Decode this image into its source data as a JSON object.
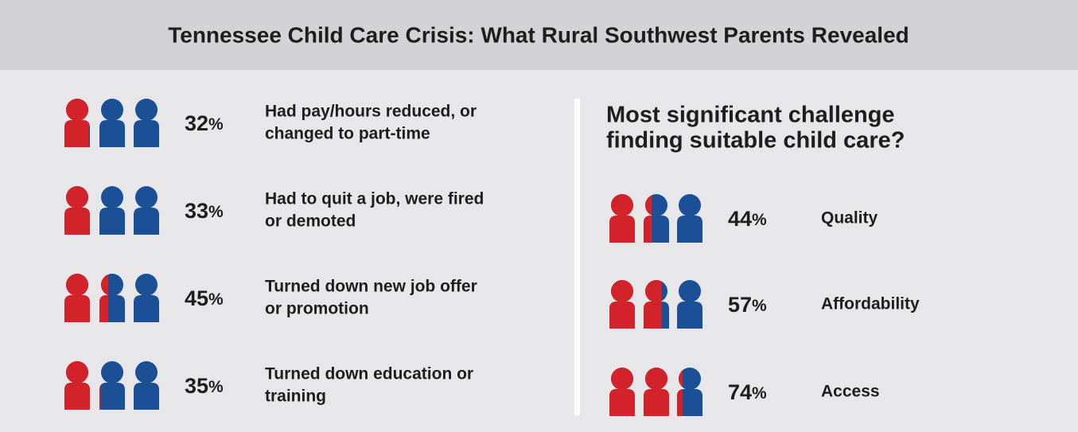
{
  "header": {
    "title": "Tennessee Child Care Crisis: What Rural Southwest Parents Revealed"
  },
  "unit": "%",
  "left": {
    "items": [
      {
        "value": 32,
        "label": [
          "Had pay/hours reduced, or",
          "changed to part-time"
        ]
      },
      {
        "value": 33,
        "label": [
          "Had to quit a job, were fired",
          "or demoted"
        ]
      },
      {
        "value": 45,
        "label": [
          "Turned down new job offer",
          "or promotion"
        ]
      },
      {
        "value": 35,
        "label": [
          "Turned down education or",
          "training"
        ]
      }
    ]
  },
  "right": {
    "heading": [
      "Most significant challenge",
      "finding suitable child care?"
    ],
    "items": [
      {
        "value": 44,
        "label": [
          "Quality"
        ]
      },
      {
        "value": 57,
        "label": [
          "Affordability"
        ]
      },
      {
        "value": 74,
        "label": [
          "Access"
        ]
      }
    ]
  },
  "colors": {
    "filled": "#d2232a",
    "empty": "#1b4f96"
  }
}
